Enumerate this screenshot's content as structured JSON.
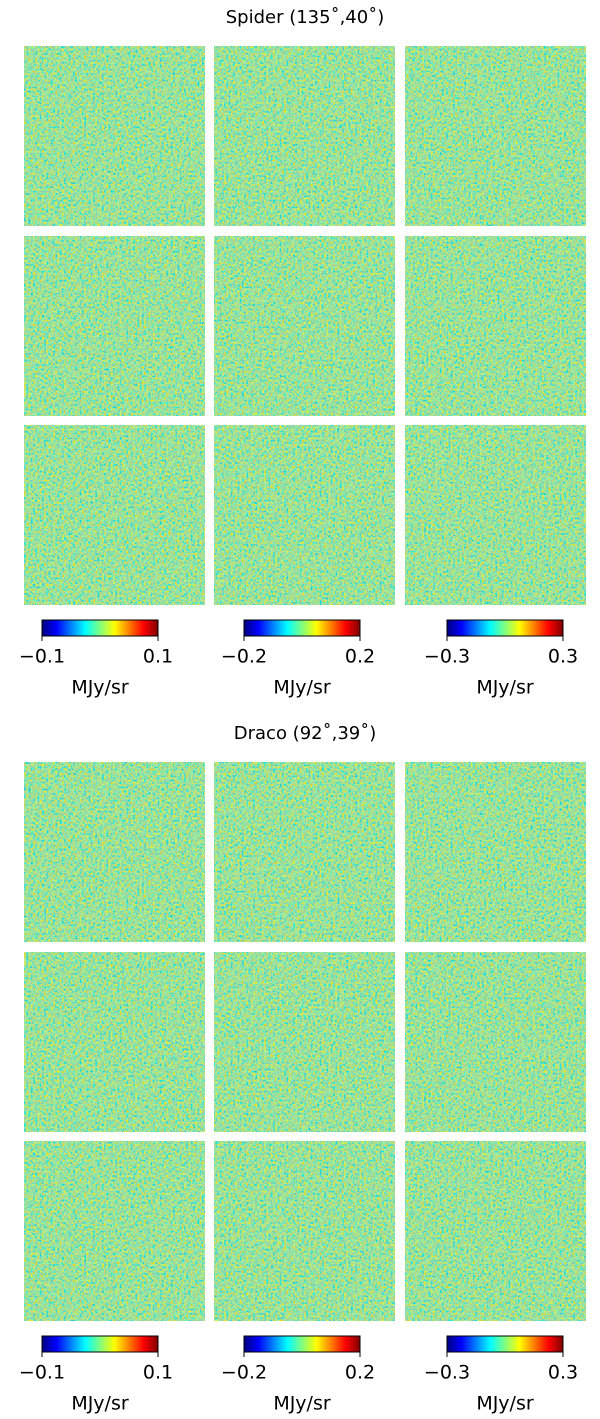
{
  "chart_data": [
    {
      "type": "colorbar-grid",
      "title": "Spider (135˚,40˚)",
      "colorbars": [
        {
          "xlim": [
            -0.1,
            0.1
          ],
          "xticks": [
            {
              "value": -0.1,
              "label": "−0.1"
            },
            0.1
          ],
          "label": "MJy/sr",
          "cmap": "jet"
        },
        {
          "xlim": [
            -0.2,
            0.2
          ],
          "xticks": [
            {
              "value": -0.2,
              "label": "−0.2"
            },
            0.2
          ],
          "label": "MJy/sr",
          "cmap": "jet"
        },
        {
          "xlim": [
            -0.3,
            0.3
          ],
          "xticks": [
            {
              "value": -0.3,
              "label": "−0.3"
            },
            0.3
          ],
          "label": "MJy/sr",
          "cmap": "jet"
        }
      ]
    },
    {
      "type": "colorbar-grid",
      "title": "Draco (92˚,39˚)",
      "colorbars": [
        {
          "xlim": [
            -0.1,
            0.1
          ],
          "xticks": [
            {
              "value": -0.1,
              "label": "−0.1"
            },
            0.1
          ],
          "label": "MJy/sr",
          "cmap": "jet"
        },
        {
          "xlim": [
            -0.2,
            0.2
          ],
          "xticks": [
            {
              "value": -0.2,
              "label": "−0.2"
            },
            0.2
          ],
          "label": "MJy/sr",
          "cmap": "jet"
        },
        {
          "xlim": [
            -0.3,
            0.3
          ],
          "xticks": [
            {
              "value": -0.3,
              "label": "−0.3"
            },
            0.3
          ],
          "label": "MJy/sr",
          "cmap": "jet"
        }
      ]
    }
  ]
}
